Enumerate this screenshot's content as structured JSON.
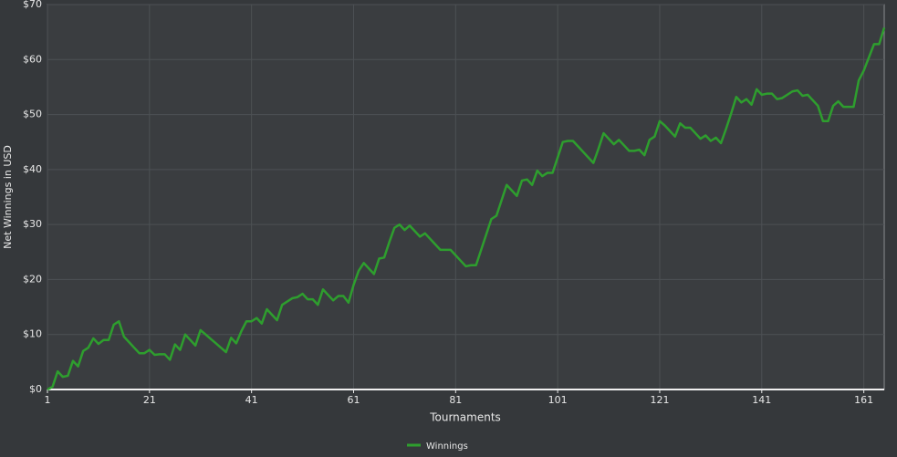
{
  "chart_data": {
    "type": "line",
    "x_label": "Tournaments",
    "y_label": "Net Winnings in USD",
    "x": [
      1,
      2,
      3,
      4,
      5,
      6,
      7,
      8,
      9,
      10,
      11,
      12,
      13,
      14,
      15,
      16,
      17,
      18,
      19,
      20,
      21,
      22,
      23,
      24,
      25,
      26,
      27,
      28,
      29,
      30,
      31,
      32,
      33,
      34,
      35,
      36,
      37,
      38,
      39,
      40,
      41,
      42,
      43,
      44,
      45,
      46,
      47,
      48,
      49,
      50,
      51,
      52,
      53,
      54,
      55,
      56,
      57,
      58,
      59,
      60,
      61,
      62,
      63,
      64,
      65,
      66,
      67,
      68,
      69,
      70,
      71,
      72,
      73,
      74,
      75,
      76,
      77,
      78,
      79,
      80,
      81,
      82,
      83,
      84,
      85,
      86,
      87,
      88,
      89,
      90,
      91,
      92,
      93,
      94,
      95,
      96,
      97,
      98,
      99,
      100,
      101,
      102,
      103,
      104,
      105,
      106,
      107,
      108,
      109,
      110,
      111,
      112,
      113,
      114,
      115,
      116,
      117,
      118,
      119,
      120,
      121,
      122,
      123,
      124,
      125,
      126,
      127,
      128,
      129,
      130,
      131,
      132,
      133,
      134,
      135,
      136,
      137,
      138,
      139,
      140,
      141,
      142,
      143,
      144,
      145,
      146,
      147,
      148,
      149,
      150,
      151,
      152,
      153,
      154,
      155,
      156,
      157,
      158,
      159,
      160,
      161,
      162,
      163,
      164,
      165
    ],
    "series": [
      {
        "name": "Winnings",
        "color": "#2e9e2e",
        "values": [
          0,
          0.5,
          3.3,
          2.3,
          2.5,
          5.2,
          4.2,
          7,
          7.6,
          9.3,
          8.3,
          9,
          9,
          11.8,
          12.4,
          9.6,
          8.6,
          7.6,
          6.6,
          6.6,
          7.2,
          6.3,
          6.4,
          6.4,
          5.4,
          8.2,
          7.2,
          10,
          9,
          8,
          10.8,
          10,
          9.2,
          8.4,
          7.6,
          6.8,
          9.4,
          8.4,
          10.6,
          12.4,
          12.4,
          13,
          12,
          14.6,
          13.6,
          12.6,
          15.4,
          16,
          16.6,
          16.8,
          17.4,
          16.4,
          16.4,
          15.4,
          18.2,
          17.2,
          16.2,
          17,
          17,
          15.8,
          19,
          21.6,
          23,
          22,
          21,
          23.8,
          24,
          26.8,
          29.4,
          30,
          29,
          29.8,
          28.8,
          27.8,
          28.4,
          27.4,
          26.4,
          25.4,
          25.4,
          25.4,
          24.4,
          23.4,
          22.4,
          22.6,
          22.6,
          25.4,
          28.2,
          31,
          31.6,
          34.4,
          37.2,
          36.2,
          35.2,
          38,
          38.2,
          37.2,
          39.8,
          38.8,
          39.4,
          39.4,
          42.2,
          45,
          45.2,
          45.2,
          44.2,
          43.2,
          42.2,
          41.2,
          43.8,
          46.6,
          45.6,
          44.6,
          45.4,
          44.4,
          43.4,
          43.4,
          43.6,
          42.6,
          45.4,
          46,
          48.8,
          48,
          47,
          46,
          48.4,
          47.6,
          47.6,
          46.6,
          45.6,
          46.2,
          45.2,
          45.8,
          44.8,
          47.4,
          50.2,
          53.2,
          52.2,
          52.8,
          51.8,
          54.6,
          53.6,
          53.8,
          53.8,
          52.8,
          53,
          53.6,
          54.2,
          54.4,
          53.4,
          53.6,
          52.6,
          51.6,
          48.8,
          48.8,
          51.6,
          52.4,
          51.4,
          51.4,
          51.4,
          56.2,
          58,
          60.4,
          62.8,
          62.8,
          65.8
        ]
      }
    ],
    "xlim": [
      1,
      165
    ],
    "ylim": [
      0,
      70
    ],
    "xticks": [
      1,
      21,
      41,
      61,
      81,
      101,
      121,
      141,
      161
    ],
    "yticks": [
      {
        "value": 0,
        "label": "$0"
      },
      {
        "value": 10,
        "label": "$10"
      },
      {
        "value": 20,
        "label": "$20"
      },
      {
        "value": 30,
        "label": "$30"
      },
      {
        "value": 40,
        "label": "$40"
      },
      {
        "value": 50,
        "label": "$50"
      },
      {
        "value": 60,
        "label": "$60"
      },
      {
        "value": 70,
        "label": "$70"
      }
    ],
    "grid": true,
    "legend": "bottom"
  }
}
